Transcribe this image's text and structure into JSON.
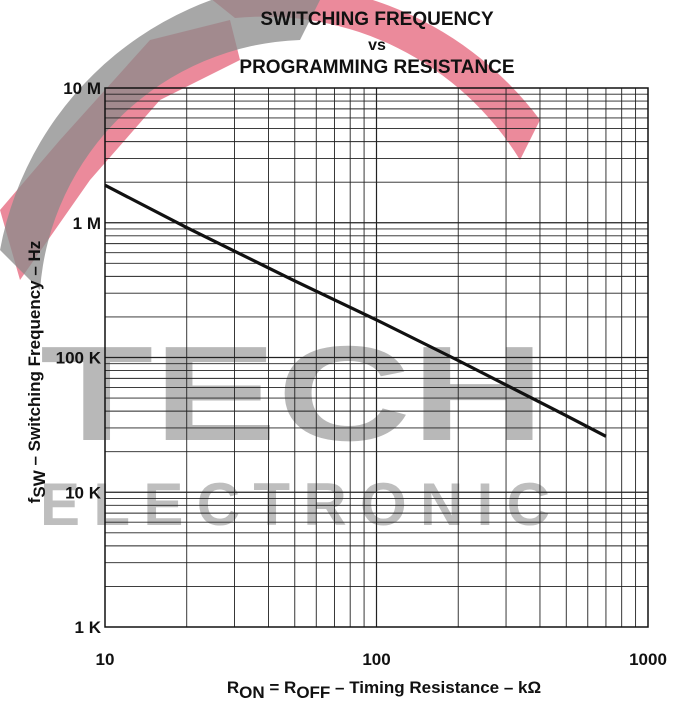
{
  "watermark": {
    "line1": "TECH",
    "line2": "ELECTRONIC"
  },
  "chart_data": {
    "type": "line",
    "title_lines": [
      "SWITCHING FREQUENCY",
      "vs",
      "PROGRAMMING RESISTANCE"
    ],
    "xscale": "log",
    "yscale": "log",
    "xlim": [
      10,
      1000
    ],
    "ylim": [
      1000,
      10000000
    ],
    "x_tick_labels": [
      {
        "value": 10,
        "label": "10"
      },
      {
        "value": 100,
        "label": "100"
      },
      {
        "value": 1000,
        "label": "1000"
      }
    ],
    "y_tick_labels": [
      {
        "value": 10000000,
        "label": "10 M"
      },
      {
        "value": 1000000,
        "label": "1 M"
      },
      {
        "value": 100000,
        "label": "100 K"
      },
      {
        "value": 10000,
        "label": "10 K"
      },
      {
        "value": 1000,
        "label": "1 K"
      }
    ],
    "xlabel": {
      "r1": "R",
      "s1": "ON",
      "mid": " = R",
      "s2": "OFF",
      "rest": " – Timing Resistance – kΩ"
    },
    "ylabel": {
      "pre": "f",
      "sub": "SW",
      "rest": " – Switching Frequency – Hz"
    },
    "grid": true,
    "series": [
      {
        "x": [
          10,
          20,
          50,
          100,
          200,
          500,
          700
        ],
        "y": [
          1900000,
          920000,
          370000,
          190000,
          95000,
          37000,
          26000
        ]
      }
    ],
    "colors": {
      "line": "#111111",
      "grid": "#222222",
      "watermark_red": "#e8758a",
      "watermark_gray": "#8a8a8a"
    }
  }
}
